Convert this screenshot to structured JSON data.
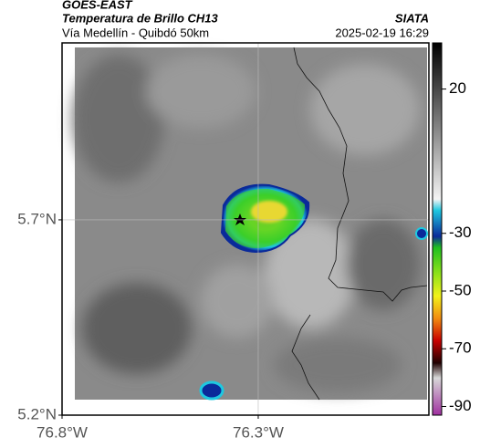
{
  "header": {
    "agency": "GOES-EAST",
    "title": "Temperatura de Brillo CH13",
    "source": "SIATA",
    "subtitle": "Vía Medellín - Quibdó 50km",
    "timestamp": "2025-02-19 16:29"
  },
  "map": {
    "xlim": [
      -76.8,
      -75.865
    ],
    "ylim": [
      5.2,
      6.153
    ],
    "xticks": [
      {
        "value": -76.8,
        "label": "76.8°W"
      },
      {
        "value": -76.3,
        "label": "76.3°W"
      }
    ],
    "yticks": [
      {
        "value": 5.2,
        "label": "5.2°N"
      },
      {
        "value": 5.7,
        "label": "5.7°N"
      }
    ],
    "grid": true
  },
  "colorbar": {
    "lim": [
      36,
      -93
    ],
    "ticks": [
      20,
      -30,
      -50,
      -70,
      -90
    ]
  }
}
